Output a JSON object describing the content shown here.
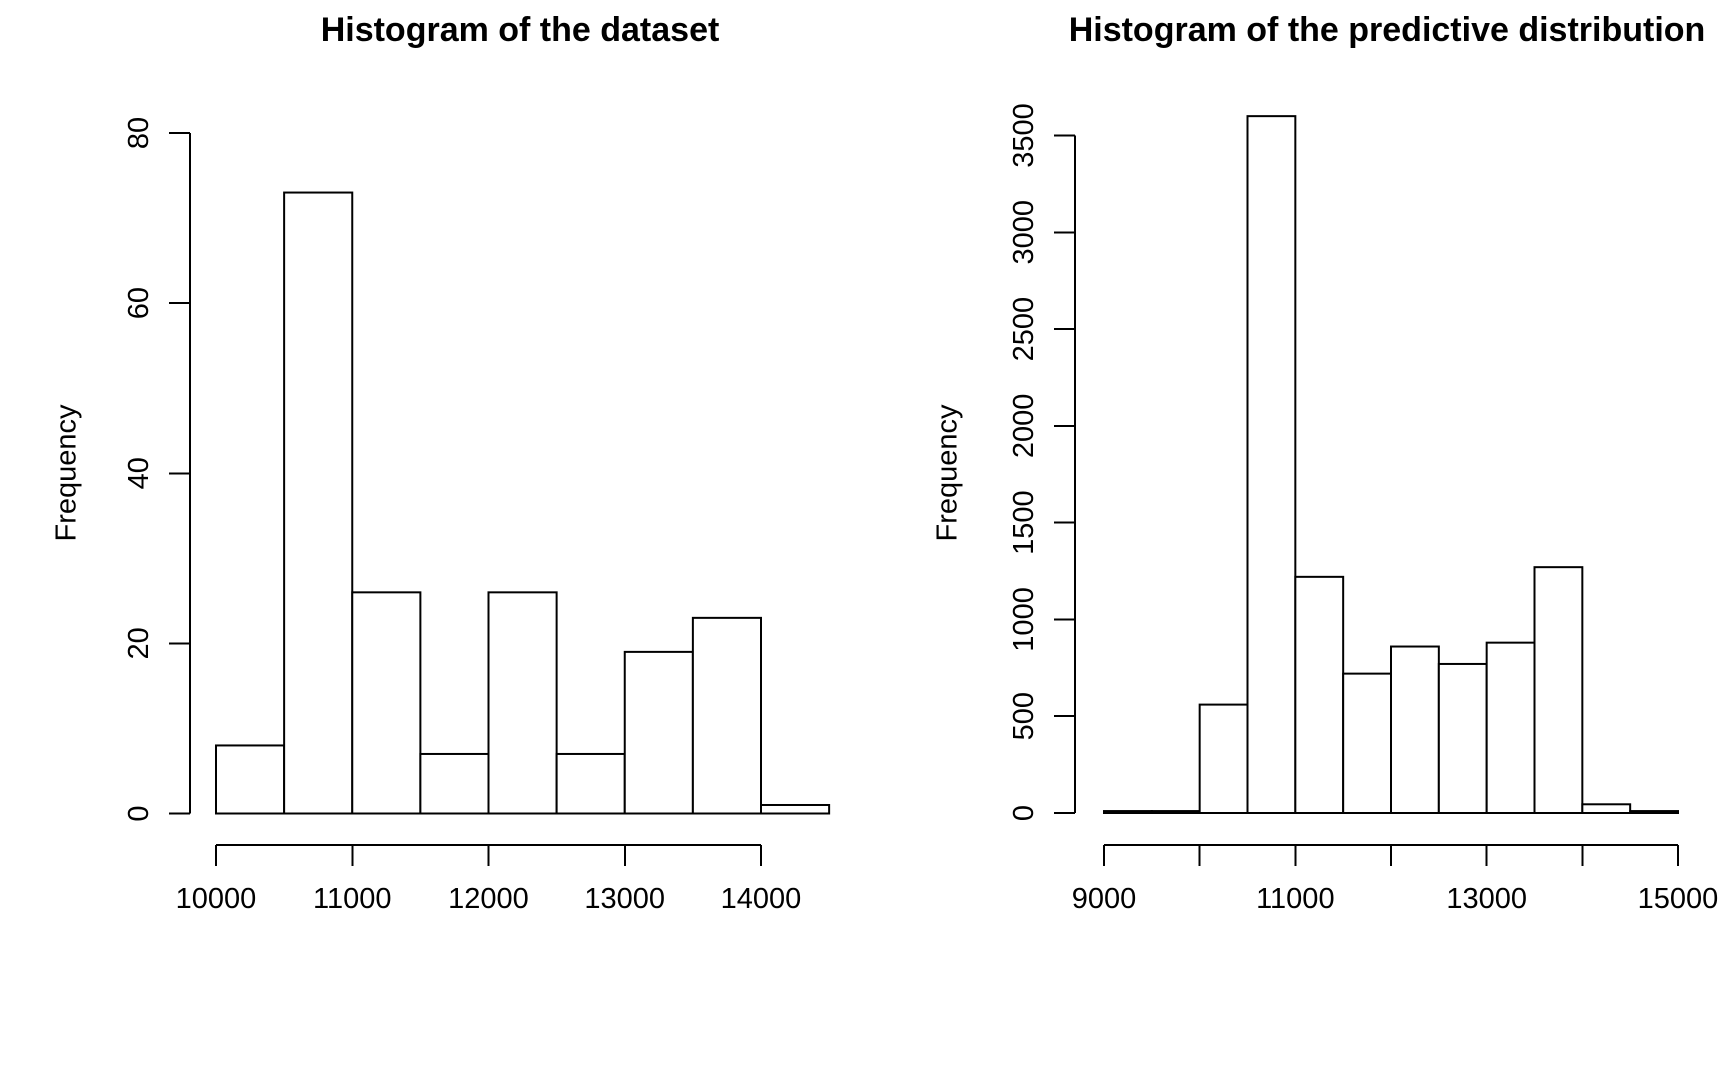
{
  "figure": {
    "background_color": "#ffffff",
    "ink_color": "#000000",
    "bar_fill_color": "#ffffff"
  },
  "chart_data": [
    {
      "type": "bar",
      "kind": "histogram",
      "title": "Histogram of the dataset",
      "xlabel": "",
      "ylabel": "Frequency",
      "bin_edges": [
        10000,
        10500,
        11000,
        11500,
        12000,
        12500,
        13000,
        13500,
        14000,
        14500
      ],
      "values": [
        8,
        73,
        26,
        7,
        26,
        7,
        19,
        23,
        1
      ],
      "x_ticks": [
        10000,
        11000,
        12000,
        13000,
        14000
      ],
      "x_tick_labels": [
        "10000",
        "11000",
        "12000",
        "13000",
        "14000"
      ],
      "y_ticks": [
        0,
        20,
        40,
        60,
        80
      ],
      "y_tick_labels": [
        "0",
        "20",
        "40",
        "60",
        "80"
      ],
      "xlim": [
        10000,
        14500
      ],
      "ylim": [
        0,
        80
      ],
      "grid": false,
      "legend_position": "none"
    },
    {
      "type": "bar",
      "kind": "histogram",
      "title": "Histogram of the predictive distribution",
      "title_truncated_display": "Histogram of the predictive distributio",
      "xlabel": "",
      "ylabel": "Frequency",
      "bin_edges": [
        9000,
        9500,
        10000,
        10500,
        11000,
        11500,
        12000,
        12500,
        13000,
        13500,
        14000,
        14500,
        15000
      ],
      "values": [
        10,
        10,
        560,
        3600,
        1220,
        720,
        860,
        770,
        880,
        1270,
        45,
        10
      ],
      "x_ticks": [
        9000,
        10000,
        11000,
        12000,
        13000,
        14000,
        15000
      ],
      "x_tick_labels": [
        "9000",
        "",
        "11000",
        "",
        "13000",
        "",
        "15000"
      ],
      "y_ticks": [
        0,
        500,
        1000,
        1500,
        2000,
        2500,
        3000,
        3500
      ],
      "y_tick_labels": [
        "0",
        "500",
        "1000",
        "1500",
        "2000",
        "2500",
        "3000",
        "3500"
      ],
      "xlim": [
        9000,
        15000
      ],
      "ylim": [
        0,
        3500
      ],
      "grid": false,
      "legend_position": "none"
    }
  ]
}
